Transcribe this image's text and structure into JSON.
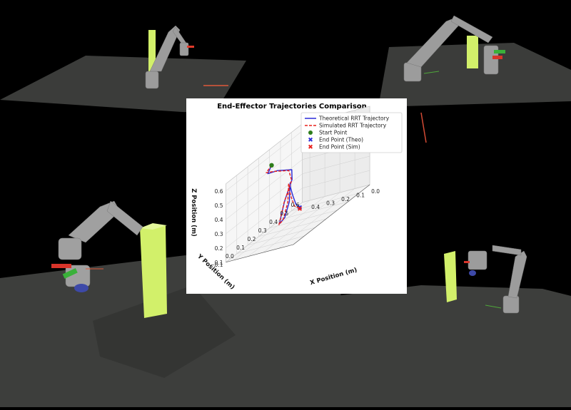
{
  "colors": {
    "theo": "#2b2bd9",
    "sim": "#e8201c",
    "start": "#2e7d1b",
    "end_theo": "#2b2bd9",
    "end_sim": "#e8201c",
    "obstacle": "#d2f06a",
    "floor": "#3a3b39",
    "robot": "#9a9a9a"
  },
  "icons": [
    "robot-arm-icon",
    "obstacle-pillar-icon"
  ],
  "chart_data": {
    "type": "line",
    "projection": "3d",
    "title": "End-Effector Trajectories Comparison",
    "xlabel": "X Position (m)",
    "ylabel": "Y Position (m)",
    "zlabel": "Z Position (m)",
    "x_ticks": [
      "0.0",
      "0.1",
      "0.2",
      "0.3",
      "0.4"
    ],
    "y_ticks": [
      "−0.1",
      "0.0",
      "0.1",
      "0.2",
      "0.3",
      "0.4",
      "0.5",
      "0.6"
    ],
    "z_ticks": [
      "0.1",
      "0.2",
      "0.3",
      "0.4",
      "0.5",
      "0.6"
    ],
    "xlim": [
      0.0,
      0.45
    ],
    "ylim": [
      -0.1,
      0.6
    ],
    "zlim": [
      0.1,
      0.65
    ],
    "grid": true,
    "legend_position": "top-right",
    "legend": [
      {
        "label": "Theoretical RRT Trajectory",
        "kind": "line-solid"
      },
      {
        "label": "Simulated RRT Trajectory",
        "kind": "line-dashed"
      },
      {
        "label": "Start Point",
        "kind": "marker-circle"
      },
      {
        "label": "End Point (Theo)",
        "kind": "marker-x-theo"
      },
      {
        "label": "End Point (Sim)",
        "kind": "marker-x-sim"
      }
    ],
    "series": [
      {
        "name": "Theoretical RRT Trajectory",
        "style": "solid",
        "points": [
          [
            0.32,
            0.14,
            0.6
          ],
          [
            0.36,
            0.16,
            0.54
          ],
          [
            0.34,
            0.22,
            0.52
          ],
          [
            0.28,
            0.27,
            0.48
          ],
          [
            0.3,
            0.3,
            0.4
          ],
          [
            0.35,
            0.3,
            0.26
          ],
          [
            0.37,
            0.28,
            0.12
          ],
          [
            0.32,
            0.26,
            0.16
          ],
          [
            0.26,
            0.22,
            0.28
          ],
          [
            0.24,
            0.2,
            0.42
          ],
          [
            0.18,
            0.12,
            0.42
          ],
          [
            0.12,
            0.06,
            0.38
          ],
          [
            0.07,
            0.02,
            0.33
          ],
          [
            0.03,
            0.0,
            0.31
          ]
        ]
      },
      {
        "name": "Simulated RRT Trajectory",
        "style": "dashed",
        "points": [
          [
            0.32,
            0.14,
            0.6
          ],
          [
            0.37,
            0.16,
            0.55
          ],
          [
            0.36,
            0.22,
            0.52
          ],
          [
            0.3,
            0.27,
            0.48
          ],
          [
            0.31,
            0.31,
            0.39
          ],
          [
            0.36,
            0.31,
            0.25
          ],
          [
            0.38,
            0.29,
            0.11
          ],
          [
            0.33,
            0.26,
            0.15
          ],
          [
            0.27,
            0.22,
            0.28
          ],
          [
            0.25,
            0.2,
            0.42
          ],
          [
            0.19,
            0.12,
            0.41
          ],
          [
            0.13,
            0.06,
            0.37
          ],
          [
            0.08,
            0.02,
            0.32
          ],
          [
            0.03,
            0.0,
            0.3
          ]
        ]
      }
    ],
    "markers": [
      {
        "name": "Start Point",
        "point": [
          0.32,
          0.14,
          0.6
        ]
      },
      {
        "name": "End Point (Theo)",
        "point": [
          0.03,
          0.0,
          0.31
        ]
      },
      {
        "name": "End Point (Sim)",
        "point": [
          0.03,
          0.0,
          0.3
        ]
      }
    ]
  }
}
